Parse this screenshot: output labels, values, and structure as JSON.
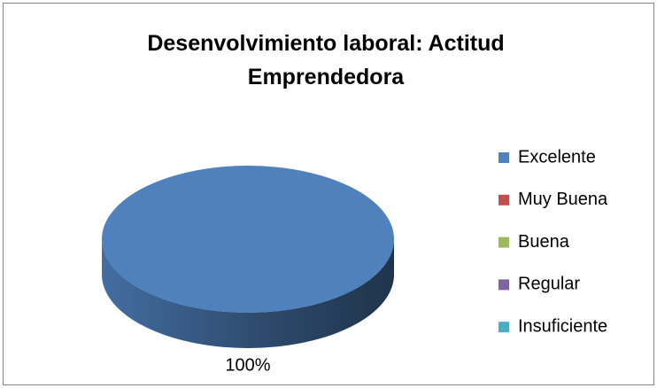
{
  "chart_data": {
    "type": "pie3d",
    "title": "Desenvolvimiento laboral: Actitud Emprendedora",
    "categories": [
      "Excelente",
      "Muy Buena",
      "Buena",
      "Regular",
      "Insuficiente"
    ],
    "values": [
      100,
      0,
      0,
      0,
      0
    ],
    "value_labels": [
      "100%",
      null,
      null,
      null,
      null
    ],
    "colors": [
      "#4f81bd",
      "#c0504d",
      "#9bbb59",
      "#8064a2",
      "#4bacc6"
    ],
    "legend": "right"
  }
}
